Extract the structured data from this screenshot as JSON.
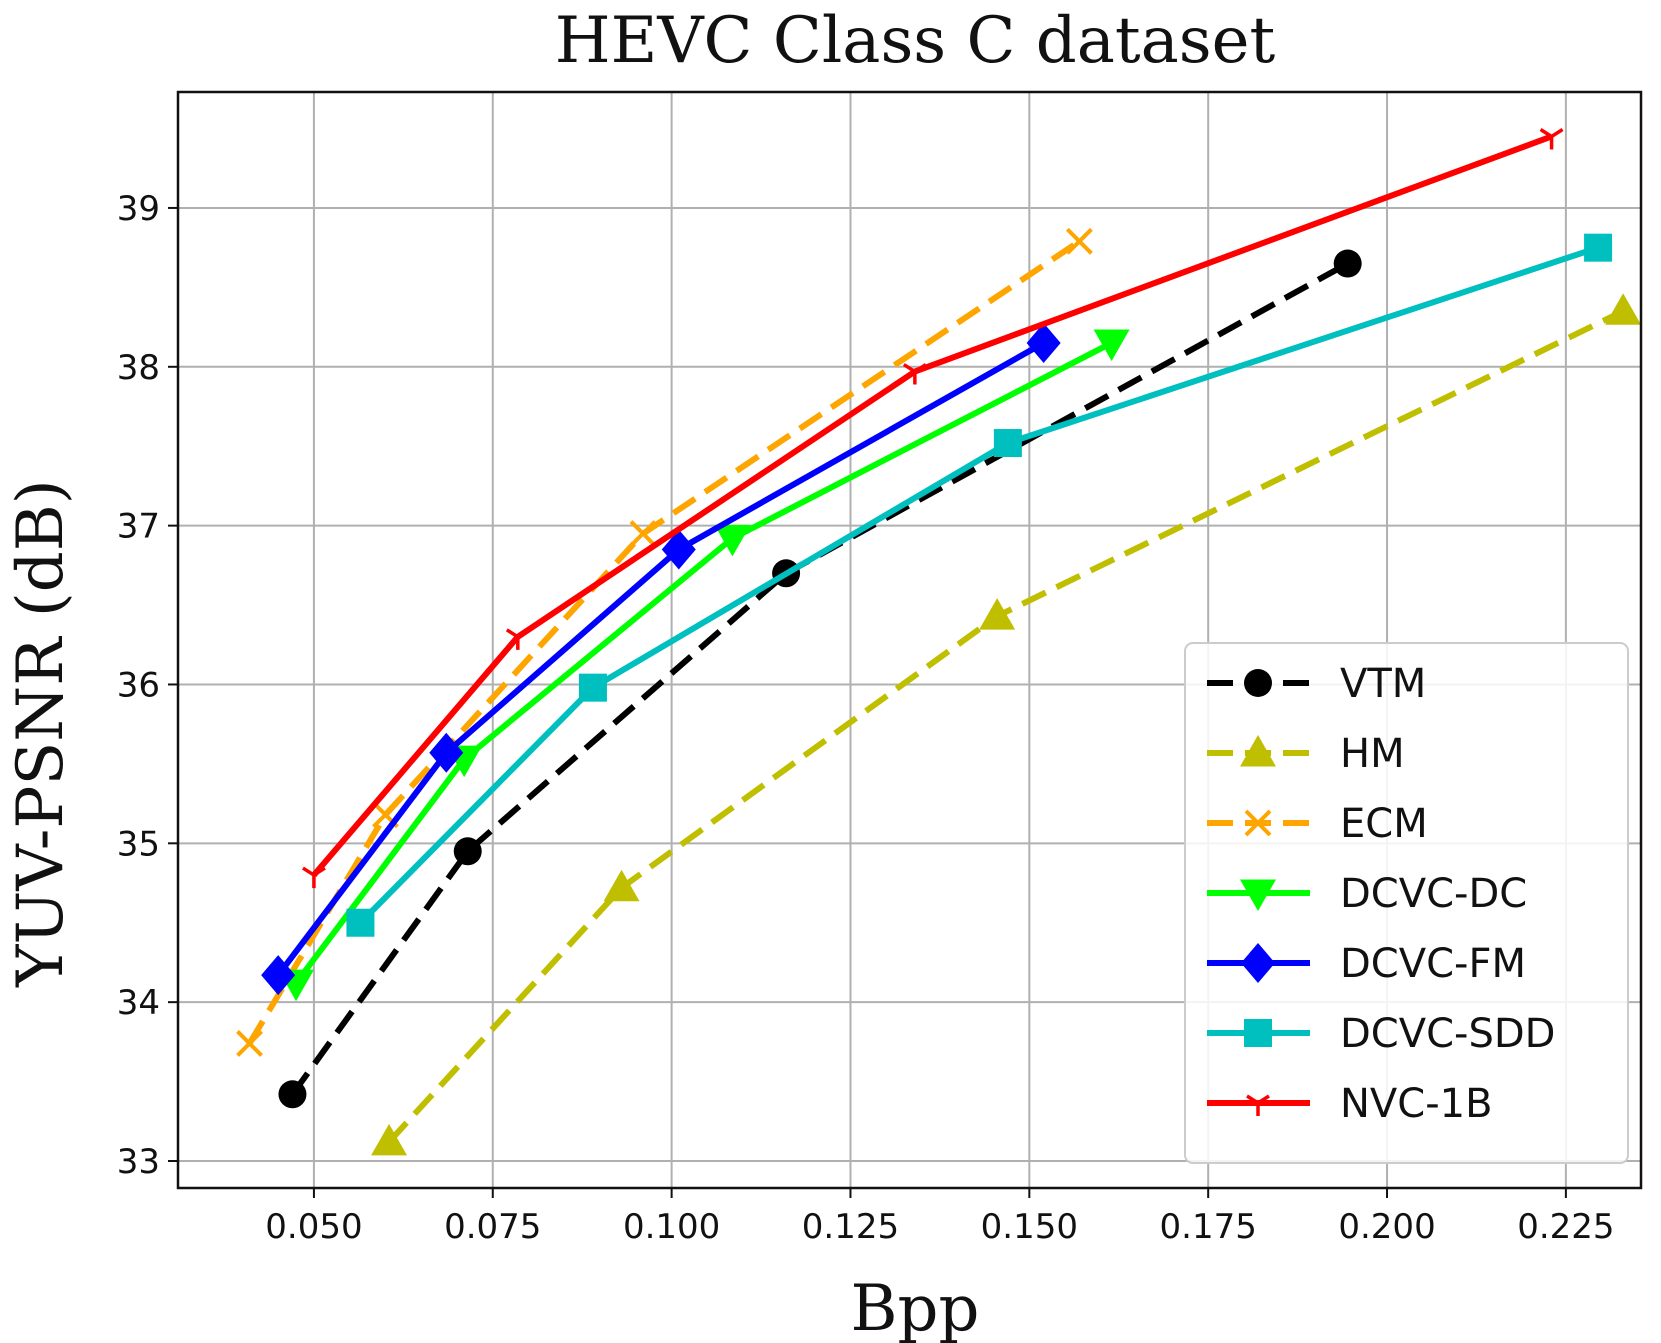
{
  "chart_data": {
    "type": "line",
    "title": "HEVC Class C dataset",
    "xlabel": "Bpp",
    "ylabel": "YUV-PSNR (dB)",
    "xlim": [
      0.031,
      0.2355
    ],
    "ylim": [
      32.83,
      39.73
    ],
    "xticks": [
      0.05,
      0.075,
      0.1,
      0.125,
      0.15,
      0.175,
      0.2,
      0.225
    ],
    "xtick_labels": [
      "0.050",
      "0.075",
      "0.100",
      "0.125",
      "0.150",
      "0.175",
      "0.200",
      "0.225"
    ],
    "yticks": [
      33,
      34,
      35,
      36,
      37,
      38,
      39
    ],
    "ytick_labels": [
      "33",
      "34",
      "35",
      "36",
      "37",
      "38",
      "39"
    ],
    "grid": true,
    "legend_position": "lower-right",
    "series": [
      {
        "name": "VTM",
        "color": "#000000",
        "dash": "dashed",
        "marker": "circle",
        "x": [
          0.047,
          0.0715,
          0.116,
          0.1945
        ],
        "y": [
          33.42,
          34.95,
          36.7,
          38.65
        ]
      },
      {
        "name": "HM",
        "color": "#bfbf00",
        "dash": "dashed",
        "marker": "triangle-up",
        "x": [
          0.0605,
          0.093,
          0.1455,
          0.233
        ],
        "y": [
          33.12,
          34.72,
          36.43,
          38.35
        ]
      },
      {
        "name": "ECM",
        "color": "#ffa500",
        "dash": "dashed",
        "marker": "x",
        "x": [
          0.041,
          0.06,
          0.096,
          0.157
        ],
        "y": [
          33.74,
          35.18,
          36.95,
          38.79
        ]
      },
      {
        "name": "DCVC-DC",
        "color": "#00ff00",
        "dash": "solid",
        "marker": "triangle-down",
        "x": [
          0.0475,
          0.071,
          0.1085,
          0.1615
        ],
        "y": [
          34.12,
          35.53,
          36.92,
          38.15
        ]
      },
      {
        "name": "DCVC-FM",
        "color": "#0000ff",
        "dash": "solid",
        "marker": "diamond",
        "x": [
          0.045,
          0.0685,
          0.101,
          0.152
        ],
        "y": [
          34.17,
          35.57,
          36.85,
          38.15
        ]
      },
      {
        "name": "DCVC-SDD",
        "color": "#00bfbf",
        "dash": "solid",
        "marker": "square",
        "x": [
          0.0565,
          0.089,
          0.147,
          0.2295
        ],
        "y": [
          34.5,
          35.98,
          37.52,
          38.75
        ]
      },
      {
        "name": "NVC-1B",
        "color": "#ff0000",
        "dash": "solid",
        "marker": "tri-down",
        "x": [
          0.05,
          0.0785,
          0.134,
          0.223
        ],
        "y": [
          34.8,
          36.3,
          37.97,
          39.45
        ]
      }
    ]
  }
}
